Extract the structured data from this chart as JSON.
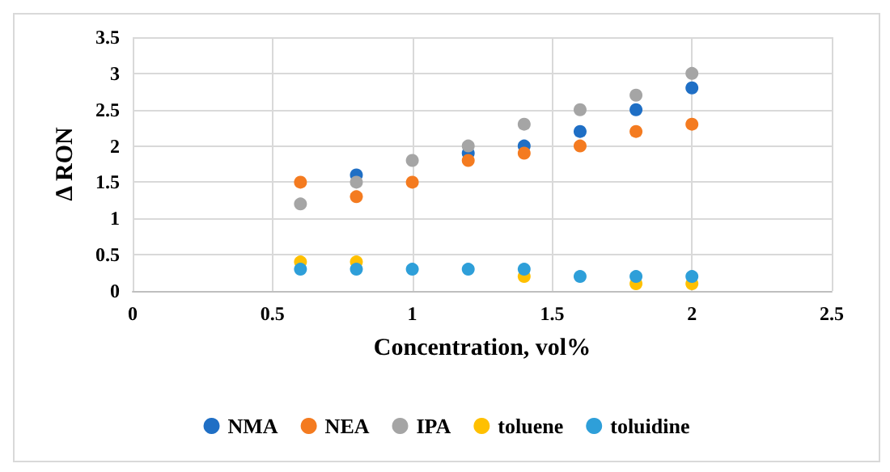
{
  "chart_data": {
    "type": "scatter",
    "xlabel": "Concentration, vol%",
    "ylabel": "Δ RON",
    "x": [
      0.6,
      0.8,
      1.0,
      1.2,
      1.4,
      1.6,
      1.8,
      2.0
    ],
    "series": [
      {
        "name": "NMA",
        "color": "#1f6fc5",
        "values": [
          null,
          1.6,
          null,
          1.9,
          2.0,
          2.2,
          2.5,
          2.8
        ]
      },
      {
        "name": "NEA",
        "color": "#f47b20",
        "values": [
          1.5,
          1.3,
          1.5,
          1.8,
          1.9,
          2.0,
          2.2,
          2.3
        ]
      },
      {
        "name": "IPA",
        "color": "#a5a5a5",
        "values": [
          1.2,
          1.5,
          1.8,
          2.0,
          2.3,
          2.5,
          2.7,
          3.0
        ]
      },
      {
        "name": "toluene",
        "color": "#ffc000",
        "values": [
          0.4,
          0.4,
          null,
          null,
          0.2,
          null,
          0.1,
          0.1
        ]
      },
      {
        "name": "toluidine",
        "color": "#2e9fd9",
        "values": [
          0.3,
          0.3,
          0.3,
          0.3,
          0.3,
          0.2,
          0.2,
          0.2
        ]
      }
    ],
    "xlim": [
      0,
      2.5
    ],
    "xticks": [
      0,
      0.5,
      1,
      1.5,
      2,
      2.5
    ],
    "ylim": [
      0,
      3.5
    ],
    "yticks": [
      0,
      0.5,
      1,
      1.5,
      2,
      2.5,
      3,
      3.5
    ],
    "grid": true,
    "legend": "bottom",
    "marker": "circle"
  }
}
